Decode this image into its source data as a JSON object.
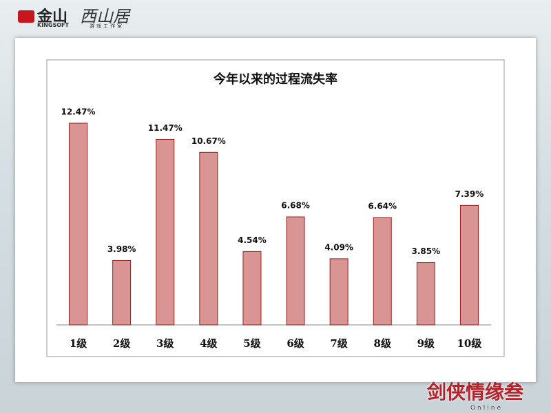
{
  "header": {
    "company": "金山",
    "company_en": "KINGSOFT",
    "studio": "西山居",
    "studio_sub": "游戏工作室"
  },
  "footer": {
    "game": "剑侠情缘叁",
    "game_sub": "Online"
  },
  "chart_data": {
    "type": "bar",
    "title": "今年以来的过程流失率",
    "categories": [
      "1级",
      "2级",
      "3级",
      "4级",
      "5级",
      "6级",
      "7级",
      "8级",
      "9级",
      "10级"
    ],
    "values": [
      12.47,
      3.98,
      11.47,
      10.67,
      4.54,
      6.68,
      4.09,
      6.64,
      3.85,
      7.39
    ],
    "value_labels": [
      "12.47%",
      "3.98%",
      "11.47%",
      "10.67%",
      "4.54%",
      "6.68%",
      "4.09%",
      "6.64%",
      "3.85%",
      "7.39%"
    ],
    "color": "#d99594",
    "edge_color": "#9b1c1c",
    "grid": false
  }
}
